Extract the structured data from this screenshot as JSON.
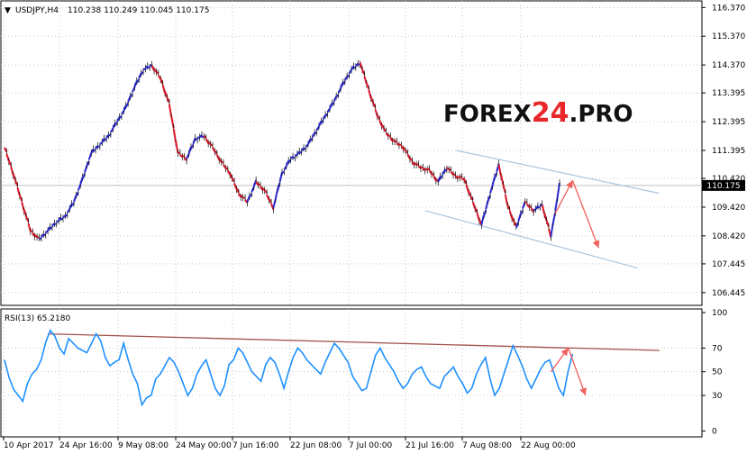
{
  "header": {
    "symbol": "USDJPY,H4",
    "ohlc": "110.238 110.249 110.045 110.175",
    "rsi_label": "RSI(13) 65.2180"
  },
  "watermark": {
    "text_a": "FOREX",
    "text_b": "24",
    "text_c": ".PRO"
  },
  "current_price_label": "110.175",
  "colors": {
    "bull_candle": "#2b2bd6",
    "bear_candle": "#e0182a",
    "channel": "#aac4dd",
    "arrow": "#f0605a",
    "rsi_line": "#1e90ff",
    "rsi_trend": "#a0524a",
    "grid": "#c8c8c8",
    "watermark_red": "#e8282b"
  },
  "chart_data": [
    {
      "type": "line",
      "title": "USDJPY,H4",
      "x_ticks": [
        "10 Apr 2017",
        "24 Apr 16:00",
        "9 May 08:00",
        "24 May 00:00",
        "7 Jun 16:00",
        "22 Jun 08:00",
        "7 Jul 00:00",
        "21 Jul 16:00",
        "7 Aug 08:00",
        "22 Aug 00:00"
      ],
      "y_ticks": [
        116.37,
        115.37,
        114.37,
        113.395,
        112.395,
        111.395,
        110.42,
        109.42,
        108.42,
        107.445,
        106.445
      ],
      "y_tick_labels": [
        "116.370",
        "115.370",
        "114.370",
        "113.395",
        "112.395",
        "111.395",
        "110.420",
        "109.420",
        "108.420",
        "107.445",
        "106.445"
      ],
      "ylim": [
        106.0,
        116.6
      ],
      "last_price": 110.175,
      "series": [
        {
          "x": [
            0,
            2,
            4,
            6,
            8,
            10,
            12,
            14,
            16,
            18,
            20,
            22,
            24,
            26,
            28,
            30,
            32,
            34,
            36,
            38,
            40,
            42,
            44,
            46,
            48,
            50,
            52,
            54,
            56,
            58,
            60,
            62,
            64,
            66,
            68,
            70,
            72,
            74,
            76,
            78,
            80,
            82,
            84,
            86,
            88,
            90,
            92,
            94,
            96,
            98,
            100
          ],
          "values": [
            111.5,
            110.6,
            109.6,
            108.6,
            108.3,
            108.6,
            108.9,
            109.1,
            109.6,
            110.4,
            111.3,
            111.6,
            111.9,
            112.4,
            112.9,
            113.6,
            114.2,
            114.35,
            113.9,
            113.0,
            111.3,
            111.1,
            111.8,
            111.9,
            111.5,
            111.0,
            110.6,
            109.9,
            109.6,
            110.3,
            110.0,
            109.4,
            110.6,
            111.1,
            111.3,
            111.6,
            112.1,
            112.6,
            113.1,
            113.7,
            114.2,
            114.45,
            113.5,
            112.6,
            112.0,
            111.7,
            111.5,
            111.0,
            110.8,
            110.7,
            110.3
          ]
        },
        {
          "x": [
            100,
            102,
            104,
            106,
            108,
            110,
            112,
            114,
            116,
            118,
            120,
            122,
            124,
            126,
            128
          ],
          "values": [
            110.3,
            110.8,
            110.5,
            110.4,
            109.6,
            108.8,
            109.9,
            110.9,
            109.5,
            108.7,
            109.6,
            109.3,
            109.5,
            108.4,
            110.2
          ]
        }
      ],
      "annotations": {
        "channel_upper": {
          "x": [
            104,
            151
          ],
          "values": [
            111.4,
            109.9
          ]
        },
        "channel_lower": {
          "x": [
            97,
            146
          ],
          "values": [
            109.3,
            107.3
          ]
        },
        "arrow_up": {
          "x": [
            127,
            131
          ],
          "values": [
            109.2,
            110.35
          ]
        },
        "arrow_down": {
          "x": [
            131,
            137
          ],
          "values": [
            110.35,
            108.0
          ]
        }
      }
    },
    {
      "type": "line",
      "title": "RSI(13) 65.2180",
      "y_ticks": [
        100,
        70,
        50,
        30,
        0
      ],
      "ylim": [
        -5,
        103
      ],
      "last_value": 65.218,
      "series": [
        {
          "x": [
            0,
            1,
            2,
            3,
            4,
            5,
            6,
            7,
            8,
            9,
            10,
            11,
            12,
            13,
            14,
            15,
            16,
            17,
            18,
            19,
            20,
            21,
            22,
            23,
            24,
            25,
            26,
            27,
            28,
            29,
            30,
            31,
            32,
            33,
            34,
            35,
            36,
            37,
            38,
            39,
            40,
            41,
            42,
            43,
            44,
            45,
            46,
            47,
            48,
            49,
            50,
            51,
            52,
            53,
            54,
            55,
            56,
            57,
            58,
            59,
            60,
            61,
            62,
            63,
            64,
            65,
            66,
            67,
            68,
            69,
            70,
            71,
            72,
            73,
            74,
            75,
            76,
            77,
            78,
            79,
            80,
            81,
            82,
            83,
            84,
            85,
            86,
            87,
            88,
            89,
            90,
            91,
            92,
            93,
            94,
            95,
            96,
            97,
            98,
            99,
            100,
            101,
            102,
            103,
            104,
            105,
            106,
            107,
            108,
            109,
            110,
            111,
            112,
            113,
            114,
            115,
            116,
            117,
            118,
            119,
            120,
            121,
            122,
            123,
            124
          ],
          "values": [
            60,
            45,
            35,
            30,
            25,
            40,
            48,
            52,
            60,
            75,
            85,
            80,
            70,
            65,
            78,
            74,
            70,
            68,
            66,
            74,
            82,
            76,
            62,
            55,
            58,
            60,
            74,
            60,
            48,
            40,
            22,
            28,
            30,
            44,
            48,
            55,
            62,
            58,
            50,
            40,
            30,
            36,
            48,
            55,
            60,
            48,
            36,
            30,
            38,
            56,
            60,
            70,
            66,
            58,
            50,
            46,
            42,
            56,
            62,
            58,
            48,
            36,
            50,
            62,
            70,
            66,
            60,
            56,
            52,
            48,
            58,
            66,
            74,
            70,
            64,
            58,
            46,
            40,
            34,
            36,
            50,
            64,
            70,
            62,
            56,
            50,
            42,
            36,
            40,
            48,
            52,
            54,
            46,
            40,
            38,
            36,
            46,
            50,
            54,
            46,
            40,
            32,
            36,
            48,
            56,
            62,
            44,
            30,
            36,
            48,
            60,
            72,
            64,
            55,
            44,
            36,
            44,
            52,
            58,
            60,
            48,
            36,
            30,
            50,
            65
          ]
        }
      ],
      "annotations": {
        "trendline": {
          "x": [
            10,
            151
          ],
          "values": [
            82,
            68
          ]
        },
        "arrow_up": {
          "x": [
            126,
            130
          ],
          "values": [
            50,
            70
          ]
        },
        "arrow_down": {
          "x": [
            130,
            134
          ],
          "values": [
            70,
            30
          ]
        }
      }
    }
  ]
}
